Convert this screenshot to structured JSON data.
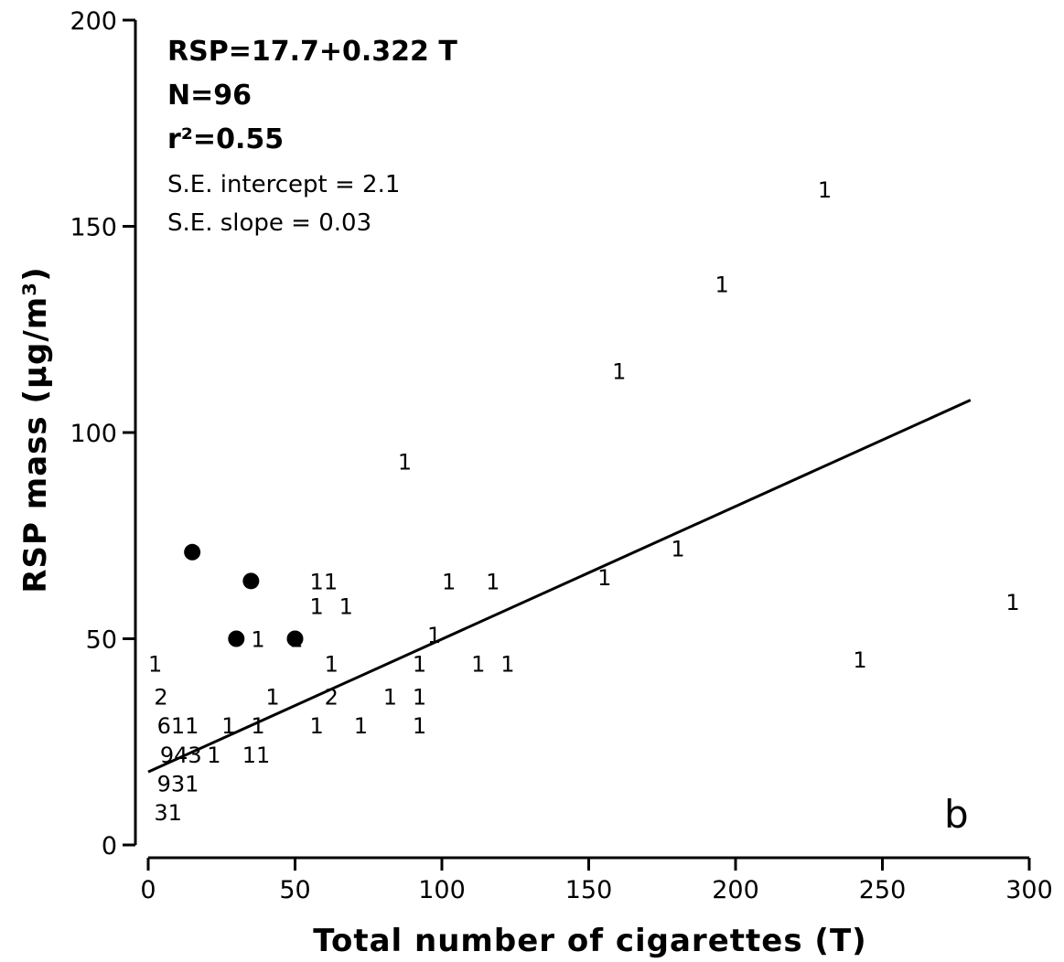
{
  "chart_data": {
    "type": "scatter",
    "xlabel": "Total number of cigarettes (T)",
    "ylabel": "RSP mass (µg/m³)",
    "xlim": [
      0,
      300
    ],
    "ylim": [
      0,
      200
    ],
    "x_ticks": [
      0,
      50,
      100,
      150,
      200,
      250,
      300
    ],
    "y_ticks": [
      0,
      50,
      100,
      150,
      200
    ],
    "grid": false,
    "panel_label": "b",
    "annotations": {
      "equation": "RSP=17.7+0.322 T",
      "n": "N=96",
      "r2": "r²=0.55",
      "se_intercept": "S.E. intercept = 2.1",
      "se_slope": "S.E. slope = 0.03"
    },
    "regression_line": {
      "intercept": 17.7,
      "slope": 0.322,
      "x_start": 0,
      "x_end": 280
    },
    "count_points": [
      {
        "x": 0,
        "y": 44,
        "label": "1"
      },
      {
        "x": 2,
        "y": 36,
        "label": "2"
      },
      {
        "x": 3,
        "y": 29,
        "label": "611"
      },
      {
        "x": 4,
        "y": 22,
        "label": "943"
      },
      {
        "x": 3,
        "y": 15,
        "label": "931"
      },
      {
        "x": 2,
        "y": 8,
        "label": "31"
      },
      {
        "x": 20,
        "y": 22,
        "label": "1"
      },
      {
        "x": 25,
        "y": 29,
        "label": "1"
      },
      {
        "x": 32,
        "y": 22,
        "label": "11"
      },
      {
        "x": 35,
        "y": 29,
        "label": "1"
      },
      {
        "x": 40,
        "y": 36,
        "label": "1"
      },
      {
        "x": 35,
        "y": 50,
        "label": "1"
      },
      {
        "x": 48,
        "y": 50,
        "label": "1"
      },
      {
        "x": 55,
        "y": 64,
        "label": "11"
      },
      {
        "x": 55,
        "y": 58,
        "label": "1"
      },
      {
        "x": 65,
        "y": 58,
        "label": "1"
      },
      {
        "x": 60,
        "y": 44,
        "label": "1"
      },
      {
        "x": 60,
        "y": 36,
        "label": "2"
      },
      {
        "x": 55,
        "y": 29,
        "label": "1"
      },
      {
        "x": 70,
        "y": 29,
        "label": "1"
      },
      {
        "x": 80,
        "y": 36,
        "label": "1"
      },
      {
        "x": 90,
        "y": 44,
        "label": "1"
      },
      {
        "x": 90,
        "y": 36,
        "label": "1"
      },
      {
        "x": 90,
        "y": 29,
        "label": "1"
      },
      {
        "x": 95,
        "y": 51,
        "label": "1"
      },
      {
        "x": 100,
        "y": 64,
        "label": "1"
      },
      {
        "x": 85,
        "y": 93,
        "label": "1"
      },
      {
        "x": 110,
        "y": 44,
        "label": "1"
      },
      {
        "x": 115,
        "y": 64,
        "label": "1"
      },
      {
        "x": 120,
        "y": 44,
        "label": "1"
      },
      {
        "x": 153,
        "y": 65,
        "label": "1"
      },
      {
        "x": 158,
        "y": 115,
        "label": "1"
      },
      {
        "x": 178,
        "y": 72,
        "label": "1"
      },
      {
        "x": 193,
        "y": 136,
        "label": "1"
      },
      {
        "x": 228,
        "y": 159,
        "label": "1"
      },
      {
        "x": 240,
        "y": 45,
        "label": "1"
      },
      {
        "x": 292,
        "y": 59,
        "label": "1"
      }
    ],
    "filled_points": [
      {
        "x": 15,
        "y": 71
      },
      {
        "x": 35,
        "y": 64
      },
      {
        "x": 30,
        "y": 50
      },
      {
        "x": 50,
        "y": 50
      }
    ]
  }
}
